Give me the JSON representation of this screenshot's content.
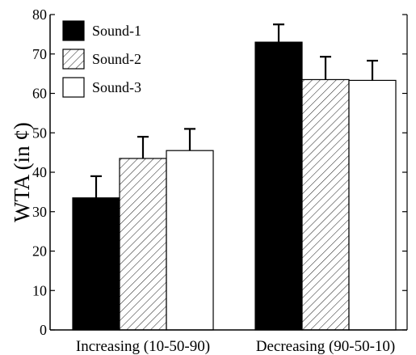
{
  "chart_data": {
    "type": "bar",
    "title": "",
    "xlabel": "",
    "ylabel": "WTA (in ¢)",
    "ylim": [
      0,
      80
    ],
    "yticks": [
      0,
      10,
      20,
      30,
      40,
      50,
      60,
      70,
      80
    ],
    "grid": false,
    "legend_position": "top-left",
    "categories": [
      "Increasing (10-50-90)",
      "Decreasing (90-50-10)"
    ],
    "series": [
      {
        "name": "Sound-1",
        "fill": "solid",
        "color": "#000000",
        "values": [
          33.5,
          73.0
        ],
        "errors": [
          5.5,
          4.5
        ]
      },
      {
        "name": "Sound-2",
        "fill": "hatched",
        "color": "#000000",
        "values": [
          43.5,
          63.5
        ],
        "errors": [
          5.5,
          5.8
        ]
      },
      {
        "name": "Sound-3",
        "fill": "open",
        "color": "#ffffff",
        "values": [
          45.5,
          63.3
        ],
        "errors": [
          5.5,
          5.0
        ]
      }
    ]
  }
}
